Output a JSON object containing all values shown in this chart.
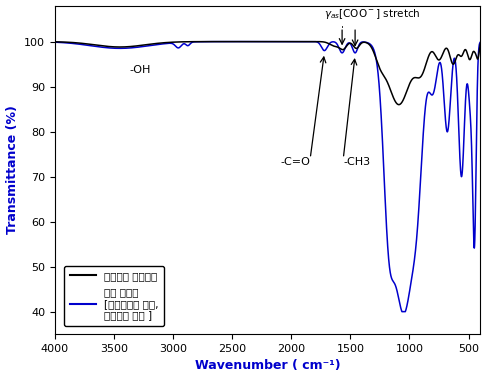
{
  "xlabel": "Wavenumber ( cm⁻¹)",
  "ylabel": "Transmittance (%)",
  "xlim": [
    4000,
    400
  ],
  "ylim": [
    35,
    108
  ],
  "yticks": [
    40,
    50,
    60,
    70,
    80,
    90,
    100
  ],
  "xticks": [
    4000,
    3500,
    3000,
    2500,
    2000,
    1500,
    1000,
    500
  ],
  "legend_black": "알루미나 멘브레인",
  "legend_blue": "최종 흡신제\n[메조세공체 코팅,\n접목중합 개질 ]",
  "annotation_oh": "-OH",
  "annotation_co": "-C=O",
  "annotation_ch3": "-CH3",
  "black_color": "#000000",
  "blue_color": "#0000cc"
}
